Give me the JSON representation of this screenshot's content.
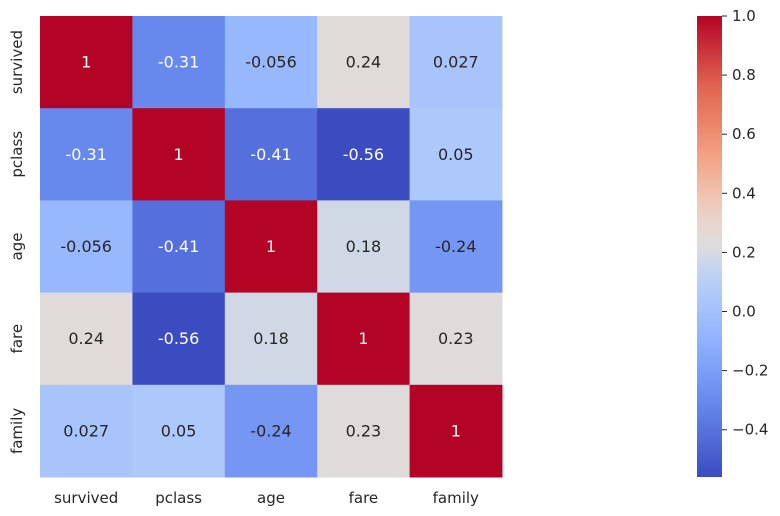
{
  "chart_data": {
    "type": "heatmap",
    "title": "",
    "xlabel": "",
    "ylabel": "",
    "x_categories": [
      "survived",
      "pclass",
      "age",
      "fare",
      "family"
    ],
    "y_categories": [
      "survived",
      "pclass",
      "age",
      "fare",
      "family"
    ],
    "values": [
      [
        1,
        -0.31,
        -0.056,
        0.24,
        0.027
      ],
      [
        -0.31,
        1,
        -0.41,
        -0.56,
        0.05
      ],
      [
        -0.056,
        -0.41,
        1,
        0.18,
        -0.24
      ],
      [
        0.24,
        -0.56,
        0.18,
        1,
        0.23
      ],
      [
        0.027,
        0.05,
        -0.24,
        0.23,
        1
      ]
    ],
    "value_labels": [
      [
        "1",
        "-0.31",
        "-0.056",
        "0.24",
        "0.027"
      ],
      [
        "-0.31",
        "1",
        "-0.41",
        "-0.56",
        "0.05"
      ],
      [
        "-0.056",
        "-0.41",
        "1",
        "0.18",
        "-0.24"
      ],
      [
        "0.24",
        "-0.56",
        "0.18",
        "1",
        "0.23"
      ],
      [
        "0.027",
        "0.05",
        "-0.24",
        "0.23",
        "1"
      ]
    ],
    "colormap": "coolwarm",
    "color_range": [
      -0.56,
      1.0
    ],
    "colorbar_ticks": [
      1.0,
      0.8,
      0.6,
      0.4,
      0.2,
      0.0,
      -0.2,
      -0.4
    ],
    "colorbar_tick_labels": [
      "1.0",
      "0.8",
      "0.6",
      "0.4",
      "0.2",
      "0.0",
      "−0.2",
      "−0.4"
    ],
    "colorbar_position": "right",
    "grid": false,
    "annotations": true
  }
}
